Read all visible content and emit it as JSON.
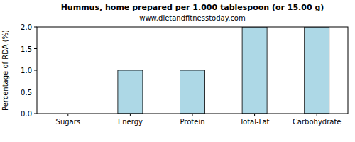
{
  "chart_data": {
    "type": "bar",
    "title": "Hummus, home prepared per 1.000 tablespoon (or 15.00 g)",
    "subtitle": "www.dietandfitnesstoday.com",
    "y_label": "Percentage of RDA (%)",
    "categories": [
      "Sugars",
      "Energy",
      "Protein",
      "Total-Fat",
      "Carbohydrate"
    ],
    "values": [
      0,
      1,
      1,
      2,
      2
    ],
    "color": "#add8e6",
    "ylim": [
      0,
      2
    ],
    "yticks": [
      {
        "value": 0,
        "label": "0.0"
      },
      {
        "value": 0.5,
        "label": "0.5"
      },
      {
        "value": 1,
        "label": "1.0"
      },
      {
        "value": 1.5,
        "label": "1.5"
      },
      {
        "value": 2,
        "label": "2.0"
      }
    ],
    "grid": false
  }
}
